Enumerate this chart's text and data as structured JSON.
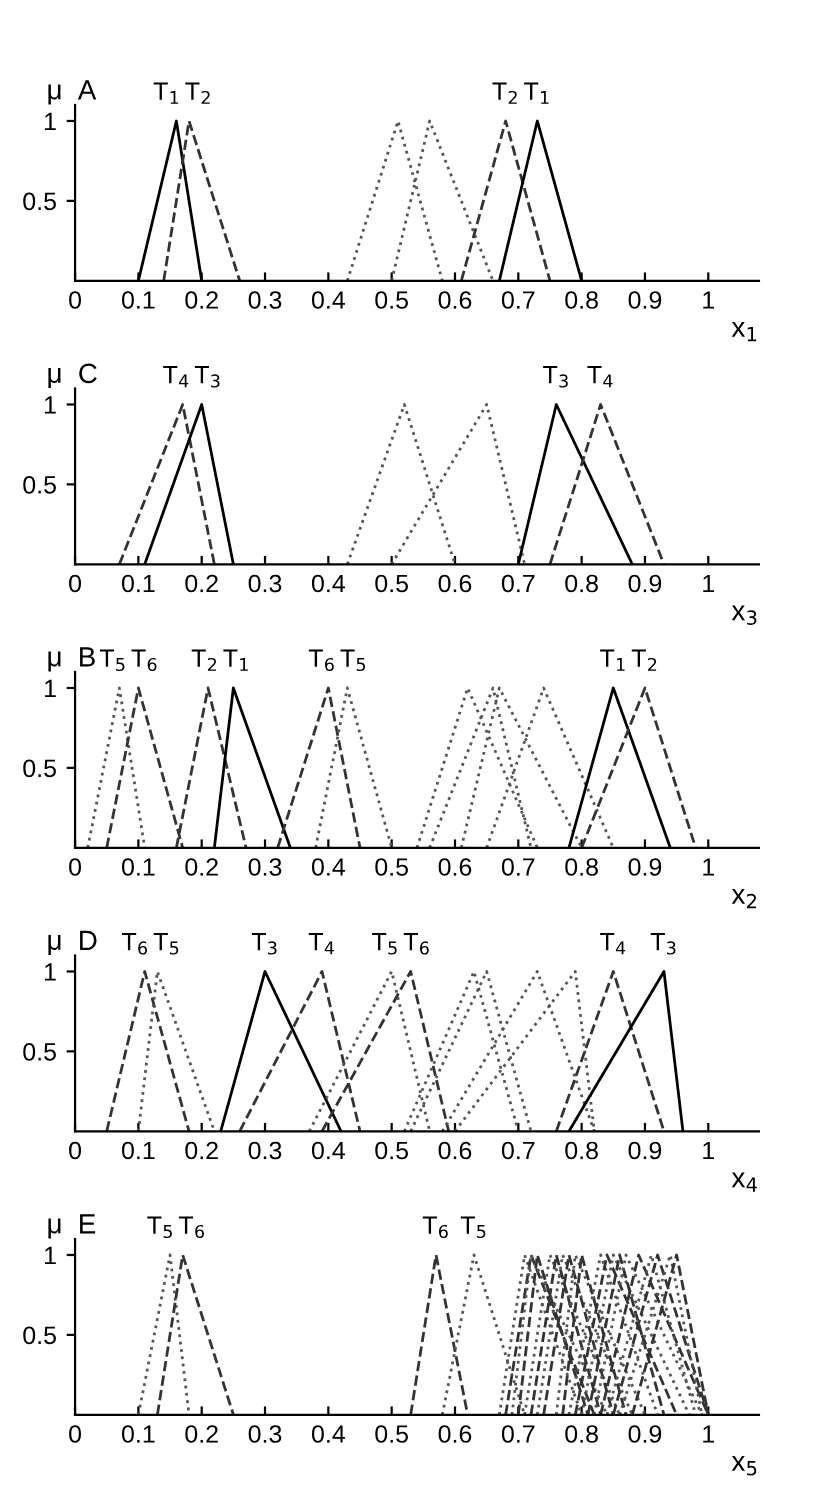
{
  "chart_data": [
    {
      "type": "line",
      "title": "A",
      "xlabel": "x$_{1}$",
      "ylabel": "μ",
      "xlim": [
        0,
        1.08
      ],
      "ylim": [
        0,
        1.1
      ],
      "xticks": [
        0,
        0.1,
        0.2,
        0.3,
        0.4,
        0.5,
        0.6,
        0.7,
        0.8,
        0.9,
        1
      ],
      "yticks": [
        0.5,
        1
      ],
      "series": [
        {
          "name": "T$_{1}$",
          "color": "#000000",
          "line_style": "solid",
          "x": [
            0.1,
            0.16,
            0.2
          ],
          "values": [
            0,
            1,
            0
          ]
        },
        {
          "name": "T$_{2}$",
          "color": "#333333",
          "line_style": "dashed",
          "x": [
            0.14,
            0.18,
            0.26
          ],
          "values": [
            0,
            1,
            0
          ]
        },
        {
          "color": "#555555",
          "line_style": "dotted",
          "x": [
            0.43,
            0.51,
            0.58
          ],
          "values": [
            0,
            1,
            0
          ]
        },
        {
          "color": "#555555",
          "line_style": "dotted",
          "x": [
            0.5,
            0.56,
            0.66
          ],
          "values": [
            0,
            1,
            0
          ]
        },
        {
          "name": "T$_{2}$",
          "color": "#333333",
          "line_style": "dashed",
          "x": [
            0.61,
            0.68,
            0.75
          ],
          "values": [
            0,
            1,
            0
          ]
        },
        {
          "name": "T$_{1}$",
          "color": "#000000",
          "line_style": "solid",
          "x": [
            0.67,
            0.73,
            0.8
          ],
          "values": [
            0,
            1,
            0
          ]
        }
      ]
    },
    {
      "type": "line",
      "title": "C",
      "xlabel": "x$_{3}$",
      "ylabel": "μ",
      "xlim": [
        0,
        1.08
      ],
      "ylim": [
        0,
        1.1
      ],
      "xticks": [
        0,
        0.1,
        0.2,
        0.3,
        0.4,
        0.5,
        0.6,
        0.7,
        0.8,
        0.9,
        1
      ],
      "yticks": [
        0.5,
        1
      ],
      "series": [
        {
          "name": "T$_{4}$",
          "color": "#333333",
          "line_style": "dashed",
          "x": [
            0.07,
            0.17,
            0.22
          ],
          "values": [
            0,
            1,
            0
          ]
        },
        {
          "name": "T$_{3}$",
          "color": "#000000",
          "line_style": "solid",
          "x": [
            0.11,
            0.2,
            0.25
          ],
          "values": [
            0,
            1,
            0
          ]
        },
        {
          "color": "#555555",
          "line_style": "dotted",
          "x": [
            0.43,
            0.52,
            0.6
          ],
          "values": [
            0,
            1,
            0
          ]
        },
        {
          "color": "#555555",
          "line_style": "dotted",
          "x": [
            0.5,
            0.65,
            0.71
          ],
          "values": [
            0,
            1,
            0
          ]
        },
        {
          "name": "T$_{3}$",
          "color": "#000000",
          "line_style": "solid",
          "x": [
            0.7,
            0.76,
            0.88
          ],
          "values": [
            0,
            1,
            0
          ]
        },
        {
          "name": "T$_{4}$",
          "color": "#333333",
          "line_style": "dashed",
          "x": [
            0.75,
            0.83,
            0.93
          ],
          "values": [
            0,
            1,
            0
          ]
        }
      ]
    },
    {
      "type": "line",
      "title": "B",
      "xlabel": "x$_{2}$",
      "ylabel": "μ",
      "xlim": [
        0,
        1.08
      ],
      "ylim": [
        0,
        1.1
      ],
      "xticks": [
        0,
        0.1,
        0.2,
        0.3,
        0.4,
        0.5,
        0.6,
        0.7,
        0.8,
        0.9,
        1
      ],
      "yticks": [
        0.5,
        1
      ],
      "series": [
        {
          "name": "T$_{5}$",
          "color": "#555555",
          "line_style": "dotted",
          "x": [
            0.02,
            0.07,
            0.11
          ],
          "values": [
            0,
            1,
            0
          ]
        },
        {
          "name": "T$_{6}$",
          "color": "#333333",
          "line_style": "dashed",
          "x": [
            0.05,
            0.1,
            0.17
          ],
          "values": [
            0,
            1,
            0
          ]
        },
        {
          "name": "T$_{2}$",
          "color": "#333333",
          "line_style": "dashed",
          "x": [
            0.16,
            0.21,
            0.27
          ],
          "values": [
            0,
            1,
            0
          ]
        },
        {
          "name": "T$_{1}$",
          "color": "#000000",
          "line_style": "solid",
          "x": [
            0.22,
            0.25,
            0.34
          ],
          "values": [
            0,
            1,
            0
          ]
        },
        {
          "name": "T$_{6}$",
          "color": "#333333",
          "line_style": "dashed",
          "x": [
            0.32,
            0.4,
            0.45
          ],
          "values": [
            0,
            1,
            0
          ]
        },
        {
          "name": "T$_{5}$",
          "color": "#555555",
          "line_style": "dotted",
          "x": [
            0.38,
            0.43,
            0.5
          ],
          "values": [
            0,
            1,
            0
          ]
        },
        {
          "color": "#555555",
          "line_style": "dotted",
          "x": [
            0.54,
            0.62,
            0.73
          ],
          "values": [
            0,
            1,
            0
          ]
        },
        {
          "color": "#555555",
          "line_style": "dotted",
          "x": [
            0.56,
            0.66,
            0.72
          ],
          "values": [
            0,
            1,
            0
          ]
        },
        {
          "color": "#555555",
          "line_style": "dotted",
          "x": [
            0.61,
            0.67,
            0.8
          ],
          "values": [
            0,
            1,
            0
          ]
        },
        {
          "color": "#555555",
          "line_style": "dotted",
          "x": [
            0.65,
            0.74,
            0.85
          ],
          "values": [
            0,
            1,
            0
          ]
        },
        {
          "name": "T$_{1}$",
          "color": "#000000",
          "line_style": "solid",
          "x": [
            0.78,
            0.85,
            0.94
          ],
          "values": [
            0,
            1,
            0
          ]
        },
        {
          "name": "T$_{2}$",
          "color": "#333333",
          "line_style": "dashed",
          "x": [
            0.8,
            0.9,
            0.98
          ],
          "values": [
            0,
            1,
            0
          ]
        }
      ]
    },
    {
      "type": "line",
      "title": "D",
      "xlabel": "x$_{4}$",
      "ylabel": "μ",
      "xlim": [
        0,
        1.08
      ],
      "ylim": [
        0,
        1.1
      ],
      "xticks": [
        0,
        0.1,
        0.2,
        0.3,
        0.4,
        0.5,
        0.6,
        0.7,
        0.8,
        0.9,
        1
      ],
      "yticks": [
        0.5,
        1
      ],
      "series": [
        {
          "name": "T$_{6}$",
          "color": "#333333",
          "line_style": "dashed",
          "x": [
            0.05,
            0.11,
            0.18
          ],
          "values": [
            0,
            1,
            0
          ]
        },
        {
          "name": "T$_{5}$",
          "color": "#555555",
          "line_style": "dotted",
          "x": [
            0.1,
            0.13,
            0.22
          ],
          "values": [
            0,
            1,
            0
          ]
        },
        {
          "name": "T$_{3}$",
          "color": "#000000",
          "line_style": "solid",
          "x": [
            0.23,
            0.3,
            0.42
          ],
          "values": [
            0,
            1,
            0
          ]
        },
        {
          "name": "T$_{4}$",
          "color": "#333333",
          "line_style": "dashed",
          "x": [
            0.26,
            0.39,
            0.45
          ],
          "values": [
            0,
            1,
            0
          ]
        },
        {
          "name": "T$_{5}$",
          "color": "#555555",
          "line_style": "dotted",
          "x": [
            0.37,
            0.5,
            0.56
          ],
          "values": [
            0,
            1,
            0
          ]
        },
        {
          "name": "T$_{6}$",
          "color": "#333333",
          "line_style": "dashed",
          "x": [
            0.39,
            0.53,
            0.59
          ],
          "values": [
            0,
            1,
            0
          ]
        },
        {
          "color": "#555555",
          "line_style": "dotted",
          "x": [
            0.52,
            0.63,
            0.7
          ],
          "values": [
            0,
            1,
            0
          ]
        },
        {
          "color": "#555555",
          "line_style": "dotted",
          "x": [
            0.53,
            0.65,
            0.72
          ],
          "values": [
            0,
            1,
            0
          ]
        },
        {
          "color": "#555555",
          "line_style": "dotted",
          "x": [
            0.58,
            0.73,
            0.82
          ],
          "values": [
            0,
            1,
            0
          ]
        },
        {
          "color": "#555555",
          "line_style": "dotted",
          "x": [
            0.6,
            0.79,
            0.82
          ],
          "values": [
            0,
            1,
            0
          ]
        },
        {
          "name": "T$_{4}$",
          "color": "#333333",
          "line_style": "dashed",
          "x": [
            0.76,
            0.85,
            0.93
          ],
          "values": [
            0,
            1,
            0
          ]
        },
        {
          "name": "T$_{3}$",
          "color": "#000000",
          "line_style": "solid",
          "x": [
            0.78,
            0.93,
            0.96
          ],
          "values": [
            0,
            1,
            0
          ]
        }
      ]
    },
    {
      "type": "line",
      "title": "E",
      "xlabel": "x$_{5}$",
      "ylabel": "μ",
      "xlim": [
        0,
        1.08
      ],
      "ylim": [
        0,
        1.1
      ],
      "xticks": [
        0,
        0.1,
        0.2,
        0.3,
        0.4,
        0.5,
        0.6,
        0.7,
        0.8,
        0.9,
        1
      ],
      "yticks": [
        0.5,
        1
      ],
      "series": [
        {
          "name": "T$_{5}$",
          "color": "#555555",
          "line_style": "dotted",
          "x": [
            0.1,
            0.15,
            0.18
          ],
          "values": [
            0,
            1,
            0
          ]
        },
        {
          "name": "T$_{6}$",
          "color": "#333333",
          "line_style": "dashed",
          "x": [
            0.13,
            0.17,
            0.25
          ],
          "values": [
            0,
            1,
            0
          ]
        },
        {
          "name": "T$_{6}$",
          "color": "#333333",
          "line_style": "dashed",
          "x": [
            0.53,
            0.57,
            0.62
          ],
          "values": [
            0,
            1,
            0
          ]
        },
        {
          "name": "T$_{5}$",
          "color": "#555555",
          "line_style": "dotted",
          "x": [
            0.58,
            0.63,
            0.71
          ],
          "values": [
            0,
            1,
            0
          ]
        },
        {
          "color": "#555555",
          "line_style": "dotted",
          "x": [
            0.67,
            0.71,
            0.8
          ],
          "values": [
            0,
            1,
            0
          ]
        },
        {
          "color": "#333333",
          "line_style": "dashed",
          "x": [
            0.68,
            0.72,
            0.82
          ],
          "values": [
            0,
            1,
            0
          ]
        },
        {
          "color": "#555555",
          "line_style": "dotted",
          "x": [
            0.69,
            0.72,
            0.84
          ],
          "values": [
            0,
            1,
            0
          ]
        },
        {
          "color": "#333333",
          "line_style": "dashed",
          "x": [
            0.7,
            0.73,
            0.81
          ],
          "values": [
            0,
            1,
            0
          ]
        },
        {
          "color": "#555555",
          "line_style": "dotted",
          "x": [
            0.71,
            0.75,
            0.86
          ],
          "values": [
            0,
            1,
            0
          ]
        },
        {
          "color": "#333333",
          "line_style": "dashed",
          "x": [
            0.72,
            0.76,
            0.83
          ],
          "values": [
            0,
            1,
            0
          ]
        },
        {
          "color": "#555555",
          "line_style": "dotted",
          "x": [
            0.73,
            0.77,
            0.88
          ],
          "values": [
            0,
            1,
            0
          ]
        },
        {
          "color": "#333333",
          "line_style": "dashed",
          "x": [
            0.74,
            0.78,
            0.85
          ],
          "values": [
            0,
            1,
            0
          ]
        },
        {
          "color": "#555555",
          "line_style": "dotted",
          "x": [
            0.76,
            0.79,
            0.9
          ],
          "values": [
            0,
            1,
            0
          ]
        },
        {
          "color": "#333333",
          "line_style": "dashed",
          "x": [
            0.77,
            0.8,
            0.87
          ],
          "values": [
            0,
            1,
            0
          ]
        },
        {
          "color": "#555555",
          "line_style": "dotted",
          "x": [
            0.78,
            0.83,
            0.92
          ],
          "values": [
            0,
            1,
            0
          ]
        },
        {
          "color": "#333333",
          "line_style": "dashed",
          "x": [
            0.79,
            0.84,
            0.95
          ],
          "values": [
            0,
            1,
            0
          ]
        },
        {
          "color": "#555555",
          "line_style": "dotted",
          "x": [
            0.8,
            0.85,
            0.97
          ],
          "values": [
            0,
            1,
            0
          ]
        },
        {
          "color": "#333333",
          "line_style": "dashed",
          "x": [
            0.81,
            0.86,
            0.93
          ],
          "values": [
            0,
            1,
            0
          ]
        },
        {
          "color": "#555555",
          "line_style": "dotted",
          "x": [
            0.82,
            0.87,
            0.99
          ],
          "values": [
            0,
            1,
            0
          ]
        },
        {
          "color": "#333333",
          "line_style": "dashed",
          "x": [
            0.83,
            0.89,
            1.0
          ],
          "values": [
            0,
            1,
            0
          ]
        },
        {
          "color": "#555555",
          "line_style": "dotted",
          "x": [
            0.84,
            0.91,
            0.98
          ],
          "values": [
            0,
            1,
            0
          ]
        },
        {
          "color": "#333333",
          "line_style": "dashed",
          "x": [
            0.85,
            0.92,
            1.0
          ],
          "values": [
            0,
            1,
            0
          ]
        },
        {
          "color": "#555555",
          "line_style": "dotted",
          "x": [
            0.86,
            0.94,
            0.99
          ],
          "values": [
            0,
            1,
            0
          ]
        },
        {
          "color": "#333333",
          "line_style": "dashed",
          "x": [
            0.88,
            0.95,
            1.0
          ],
          "values": [
            0,
            1,
            0
          ]
        }
      ]
    }
  ]
}
